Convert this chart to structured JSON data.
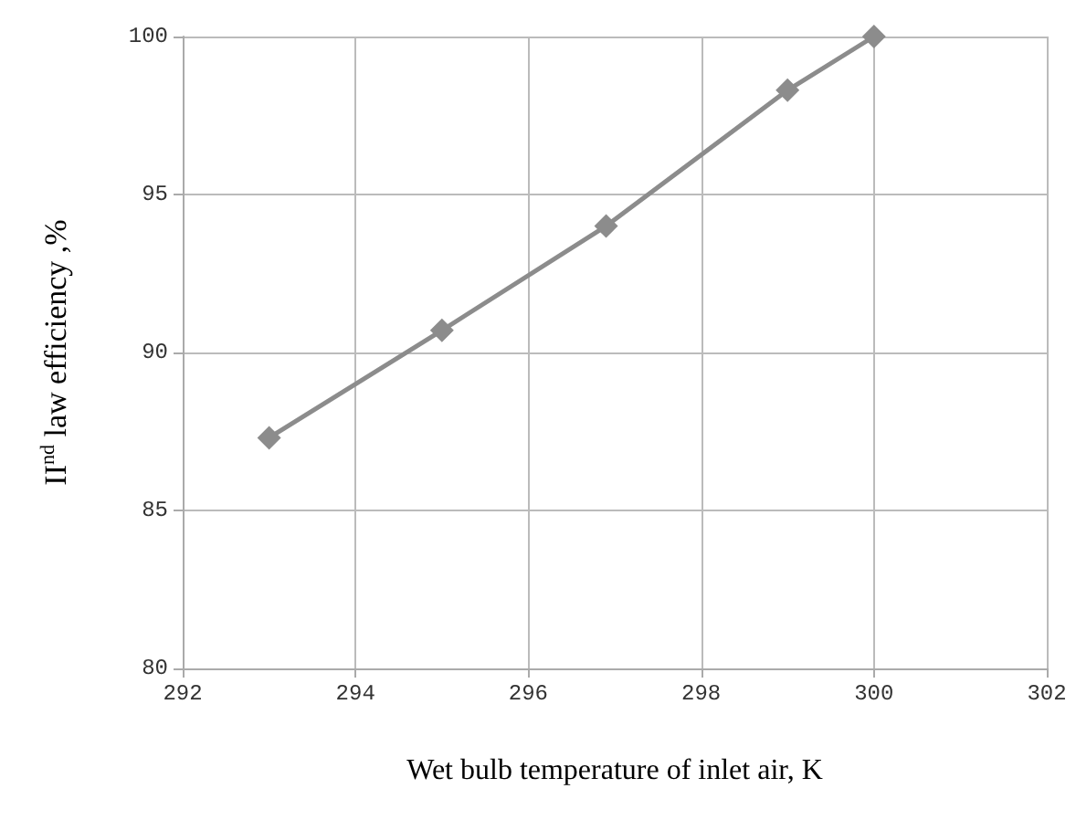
{
  "chart_data": {
    "type": "line",
    "x": [
      293,
      295,
      296.9,
      299,
      300
    ],
    "series": [
      {
        "color": "#8c8c8c",
        "values": [
          87.3,
          90.7,
          94.0,
          98.3,
          100
        ]
      }
    ],
    "xlabel": "Wet bulb temperature of inlet air, K",
    "ylabel": "II$^{nd}$ law efficiency ,%",
    "xlim": [
      292,
      302
    ],
    "xticks": [
      292,
      294,
      296,
      298,
      300,
      302
    ],
    "ylim": [
      80,
      100
    ],
    "yticks": [
      80,
      85,
      90,
      95,
      100
    ],
    "grid": true,
    "marker": "diamond",
    "line_style": "solid"
  }
}
